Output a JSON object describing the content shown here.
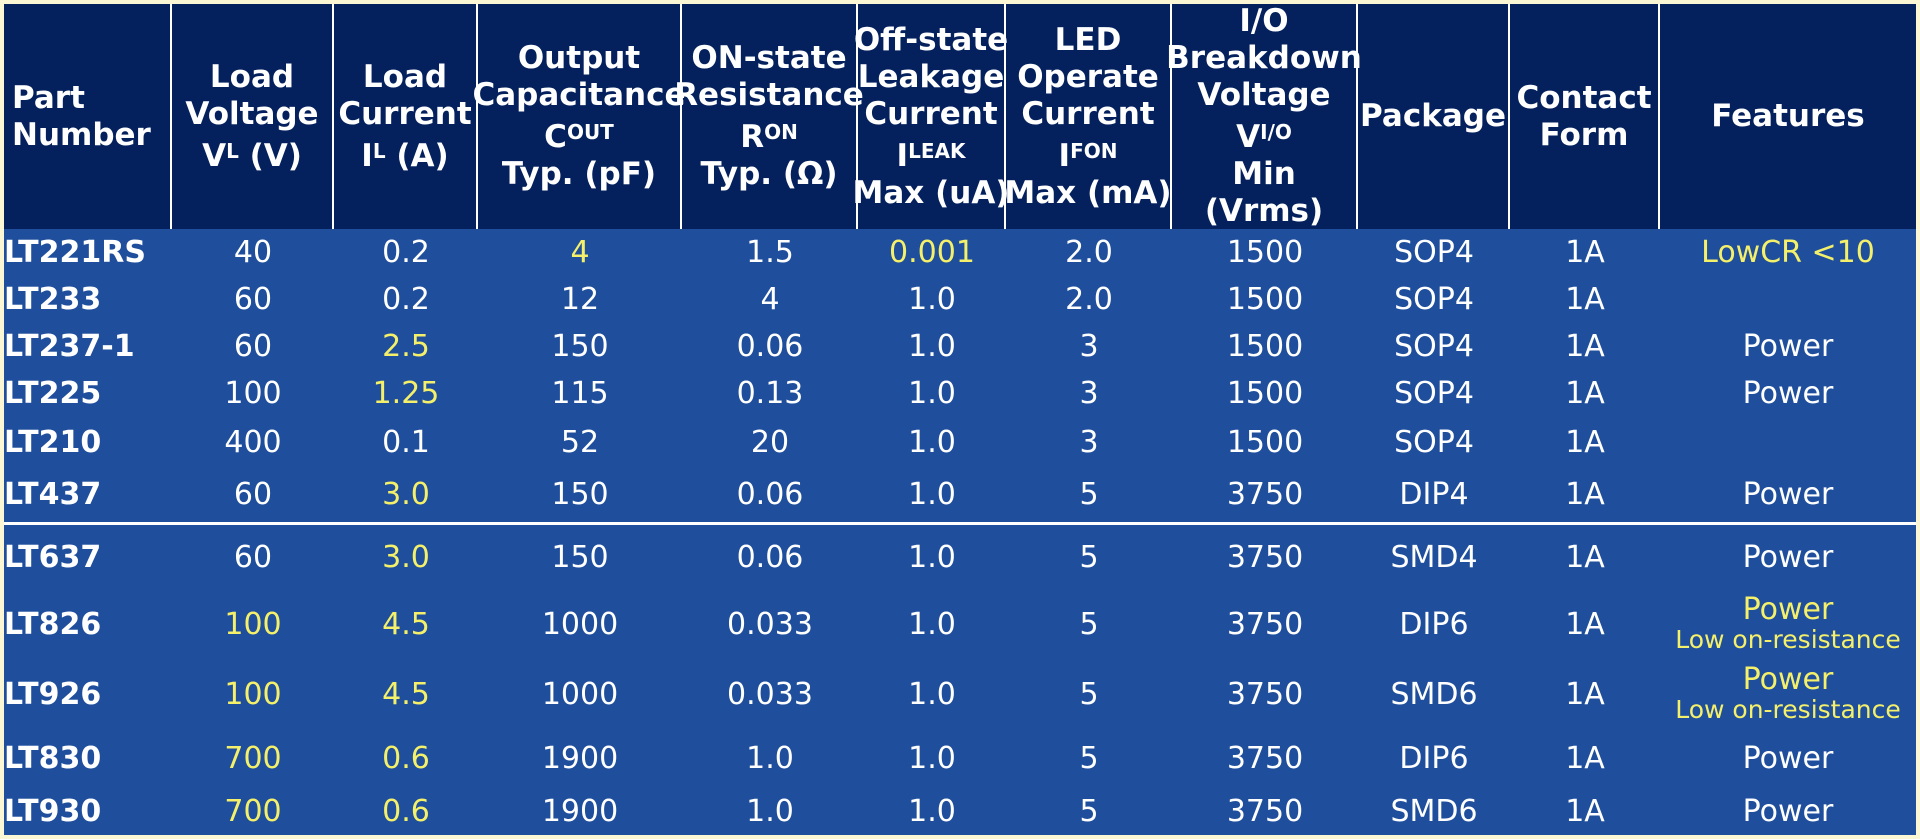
{
  "headers": [
    {
      "key": "part",
      "lines": [
        {
          "t": "Part"
        },
        {
          "t": "Number"
        }
      ],
      "align": "left"
    },
    {
      "key": "load_voltage",
      "lines": [
        {
          "t": "Load"
        },
        {
          "t": "Voltage"
        },
        {
          "t": "V",
          "sub": "L",
          "after": " (V)"
        }
      ]
    },
    {
      "key": "load_current",
      "lines": [
        {
          "t": "Load"
        },
        {
          "t": "Current"
        },
        {
          "t": "I",
          "sub": "L",
          "after": " (A)"
        }
      ]
    },
    {
      "key": "output_capacitance",
      "lines": [
        {
          "t": "Output"
        },
        {
          "t": "Capacitance"
        },
        {
          "t": "C",
          "sub": "OUT",
          "after": ""
        },
        {
          "t": "Typ. (pF)"
        }
      ]
    },
    {
      "key": "on_resistance",
      "lines": [
        {
          "t": "ON-state"
        },
        {
          "t": "Resistance"
        },
        {
          "t": "R",
          "sub": "ON",
          "after": ""
        },
        {
          "t": "Typ. (Ω)"
        }
      ]
    },
    {
      "key": "leakage",
      "lines": [
        {
          "t": "Off-state"
        },
        {
          "t": "Leakage"
        },
        {
          "t": "Current"
        },
        {
          "t": "I",
          "sub": "LEAK",
          "after": ""
        },
        {
          "t": "Max (uA)"
        }
      ]
    },
    {
      "key": "led_current",
      "lines": [
        {
          "t": "LED"
        },
        {
          "t": "Operate"
        },
        {
          "t": "Current"
        },
        {
          "t": "I",
          "sub": "FON",
          "after": ""
        },
        {
          "t": "Max (mA)"
        }
      ]
    },
    {
      "key": "breakdown",
      "lines": [
        {
          "t": "I/O"
        },
        {
          "t": "Breakdown"
        },
        {
          "t": "Voltage"
        },
        {
          "t": "V",
          "sub": "I/O",
          "after": ""
        },
        {
          "t": "Min"
        },
        {
          "t": "(Vrms)"
        }
      ]
    },
    {
      "key": "package",
      "lines": [
        {
          "t": "Package"
        }
      ]
    },
    {
      "key": "contact",
      "lines": [
        {
          "t": "Contact"
        },
        {
          "t": "Form"
        }
      ]
    },
    {
      "key": "features",
      "lines": [
        {
          "t": "Features"
        }
      ]
    }
  ],
  "rows": [
    {
      "part": "LT221RS",
      "load_voltage": "40",
      "load_current": "0.2",
      "output_capacitance": "4",
      "on_resistance": "1.5",
      "leakage": "0.001",
      "led_current": "2.0",
      "breakdown": "1500",
      "package": "SOP4",
      "contact": "1A",
      "features": [
        "LowCR <10"
      ],
      "highlight": [
        "output_capacitance",
        "leakage",
        "features"
      ]
    },
    {
      "part": "LT233",
      "load_voltage": "60",
      "load_current": "0.2",
      "output_capacitance": "12",
      "on_resistance": "4",
      "leakage": "1.0",
      "led_current": "2.0",
      "breakdown": "1500",
      "package": "SOP4",
      "contact": "1A",
      "features": [],
      "highlight": []
    },
    {
      "part": "LT237-1",
      "load_voltage": "60",
      "load_current": "2.5",
      "output_capacitance": "150",
      "on_resistance": "0.06",
      "leakage": "1.0",
      "led_current": "3",
      "breakdown": "1500",
      "package": "SOP4",
      "contact": "1A",
      "features": [
        "Power"
      ],
      "highlight": [
        "load_current"
      ]
    },
    {
      "part": "LT225",
      "load_voltage": "100",
      "load_current": "1.25",
      "output_capacitance": "115",
      "on_resistance": "0.13",
      "leakage": "1.0",
      "led_current": "3",
      "breakdown": "1500",
      "package": "SOP4",
      "contact": "1A",
      "features": [
        "Power"
      ],
      "highlight": [
        "load_current"
      ]
    },
    {
      "part": "LT210",
      "load_voltage": "400",
      "load_current": "0.1",
      "output_capacitance": "52",
      "on_resistance": "20",
      "leakage": "1.0",
      "led_current": "3",
      "breakdown": "1500",
      "package": "SOP4",
      "contact": "1A",
      "features": [],
      "highlight": []
    },
    {
      "part": "LT437",
      "load_voltage": "60",
      "load_current": "3.0",
      "output_capacitance": "150",
      "on_resistance": "0.06",
      "leakage": "1.0",
      "led_current": "5",
      "breakdown": "3750",
      "package": "DIP4",
      "contact": "1A",
      "features": [
        "Power"
      ],
      "highlight": [
        "load_current"
      ]
    },
    {
      "part": "LT637",
      "load_voltage": "60",
      "load_current": "3.0",
      "output_capacitance": "150",
      "on_resistance": "0.06",
      "leakage": "1.0",
      "led_current": "5",
      "breakdown": "3750",
      "package": "SMD4",
      "contact": "1A",
      "features": [
        "Power"
      ],
      "highlight": [
        "load_current"
      ]
    },
    {
      "part": "LT826",
      "load_voltage": "100",
      "load_current": "4.5",
      "output_capacitance": "1000",
      "on_resistance": "0.033",
      "leakage": "1.0",
      "led_current": "5",
      "breakdown": "3750",
      "package": "DIP6",
      "contact": "1A",
      "features": [
        "Power",
        "Low on-resistance"
      ],
      "highlight": [
        "load_voltage",
        "load_current",
        "features"
      ]
    },
    {
      "part": "LT926",
      "load_voltage": "100",
      "load_current": "4.5",
      "output_capacitance": "1000",
      "on_resistance": "0.033",
      "leakage": "1.0",
      "led_current": "5",
      "breakdown": "3750",
      "package": "SMD6",
      "contact": "1A",
      "features": [
        "Power",
        "Low on-resistance"
      ],
      "highlight": [
        "load_voltage",
        "load_current",
        "features"
      ]
    },
    {
      "part": "LT830",
      "load_voltage": "700",
      "load_current": "0.6",
      "output_capacitance": "1900",
      "on_resistance": "1.0",
      "leakage": "1.0",
      "led_current": "5",
      "breakdown": "3750",
      "package": "DIP6",
      "contact": "1A",
      "features": [
        "Power"
      ],
      "highlight": [
        "load_voltage",
        "load_current"
      ]
    },
    {
      "part": "LT930",
      "load_voltage": "700",
      "load_current": "0.6",
      "output_capacitance": "1900",
      "on_resistance": "1.0",
      "leakage": "1.0",
      "led_current": "5",
      "breakdown": "3750",
      "package": "SMD6",
      "contact": "1A",
      "features": [
        "Power"
      ],
      "highlight": [
        "load_voltage",
        "load_current"
      ]
    }
  ],
  "colors": {
    "header_bg": "#04215d",
    "body_bg": "#1e4e9c",
    "highlight": "#f5f06a",
    "text": "#ffffff",
    "page_bg": "#fbf6d4"
  }
}
